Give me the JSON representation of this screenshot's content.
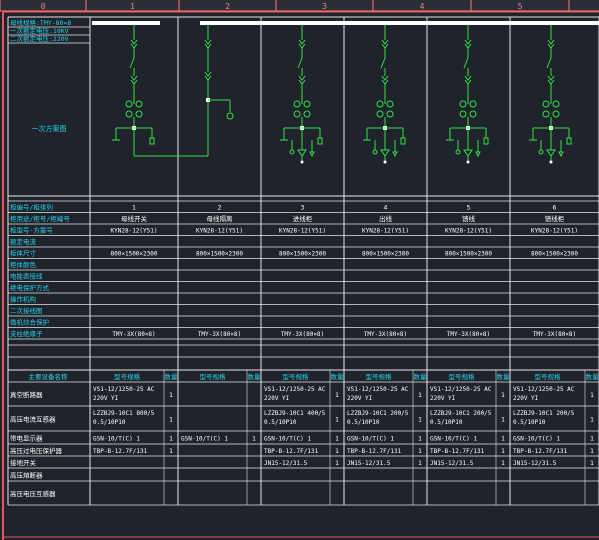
{
  "ruler": [
    "0",
    "1",
    "2",
    "3",
    "4",
    "5"
  ],
  "header_info": [
    "母线规格:TMY-80×8",
    "一次额定电压:10KV",
    "二次额定电压:220V"
  ],
  "diagram_label": "一次方案图",
  "row_labels": [
    "柜编号/柜排列",
    "柜用途/柜号/柜编号",
    "柜型号-方案号",
    "额定电流",
    "柜体尺寸",
    "柜体颜色",
    "电能表接线",
    "继电保护方式",
    "操作机构",
    "二次接线图",
    "微机综合保护",
    "支柱绝缘子"
  ],
  "panels": [
    {
      "no": "1",
      "name": "母线开关",
      "model": "KYN28-12(Y51)",
      "size": "800×1500×2300",
      "insulator": "TMY-3X(80×8)"
    },
    {
      "no": "2",
      "name": "母线隔离",
      "model": "KYN28-12(Y51)",
      "size": "800×1500×2300",
      "insulator": "TMY-3X(80×8)"
    },
    {
      "no": "3",
      "name": "进线柜",
      "model": "KYN28-12(Y51)",
      "size": "800×1500×2300",
      "insulator": "TMY-3X(80×8)"
    },
    {
      "no": "4",
      "name": "出线",
      "model": "KYN28-12(Y51)",
      "size": "800×1500×2300",
      "insulator": "TMY-3X(80×8)"
    },
    {
      "no": "5",
      "name": "馈线",
      "model": "KYN28-12(Y51)",
      "size": "800×1500×2300",
      "insulator": "TMY-3X(80×8)"
    },
    {
      "no": "6",
      "name": "馈线柜",
      "model": "KYN28-12(Y51)",
      "size": "800×1500×2300",
      "insulator": "TMY-3X(80×8)"
    }
  ],
  "equip_header": {
    "name": "主要设备名称",
    "spec": "型号规格",
    "qty": "数量"
  },
  "equip_names": [
    "真空断路器",
    "高压电流互感器",
    "带电显示器",
    "高压过电压保护器",
    "接地开关",
    "高压熔断器",
    "高压电压互感器"
  ],
  "equip_cells": [
    [
      {
        "spec": "VS1-12/1250-25 AC 220V YI",
        "qty": "1"
      },
      {
        "spec": "",
        "qty": ""
      },
      {
        "spec": "VS1-12/1250-25 AC 220V YI",
        "qty": "1"
      },
      {
        "spec": "VS1-12/1250-25 AC 220V YI",
        "qty": "1"
      },
      {
        "spec": "VS1-12/1250-25 AC 220V YI",
        "qty": "1"
      },
      {
        "spec": "VS1-12/1250-25 AC 220V YI",
        "qty": "1"
      }
    ],
    [
      {
        "spec": "LZZBJ9-10C1 800/5 0.5/10P10",
        "qty": "1"
      },
      {
        "spec": "",
        "qty": ""
      },
      {
        "spec": "LZZBJ9-10C1 400/5 0.5/10P10",
        "qty": "1"
      },
      {
        "spec": "LZZBJ9-10C1 200/5 0.5/10P10",
        "qty": "1"
      },
      {
        "spec": "LZZBJ9-10C1 200/5 0.5/10P10",
        "qty": "1"
      },
      {
        "spec": "LZZBJ9-10C1 200/5 0.5/10P10",
        "qty": "1"
      }
    ],
    [
      {
        "spec": "GSN-10/T(C) 1",
        "qty": "1"
      },
      {
        "spec": "GSN-10/T(C) 1",
        "qty": "1"
      },
      {
        "spec": "GSN-10/T(C) 1",
        "qty": "1"
      },
      {
        "spec": "GSN-10/T(C) 1",
        "qty": "1"
      },
      {
        "spec": "GSN-10/T(C) 1",
        "qty": "1"
      },
      {
        "spec": "GSN-10/T(C) 1",
        "qty": "1"
      }
    ],
    [
      {
        "spec": "TBP-B-12.7F/131",
        "qty": "1"
      },
      {
        "spec": "",
        "qty": ""
      },
      {
        "spec": "TBP-B-12.7F/131",
        "qty": "1"
      },
      {
        "spec": "TBP-B-12.7F/131",
        "qty": "1"
      },
      {
        "spec": "TBP-B-12.7F/131",
        "qty": "1"
      },
      {
        "spec": "TBP-B-12.7F/131",
        "qty": "1"
      }
    ],
    [
      {
        "spec": "",
        "qty": ""
      },
      {
        "spec": "",
        "qty": ""
      },
      {
        "spec": "JN15-12/31.5",
        "qty": "1"
      },
      {
        "spec": "JN15-12/31.5",
        "qty": "1"
      },
      {
        "spec": "JN15-12/31.5",
        "qty": "1"
      },
      {
        "spec": "JN15-12/31.5",
        "qty": "1"
      }
    ],
    [
      {
        "spec": "",
        "qty": ""
      },
      {
        "spec": "",
        "qty": ""
      },
      {
        "spec": "",
        "qty": ""
      },
      {
        "spec": "",
        "qty": ""
      },
      {
        "spec": "",
        "qty": ""
      },
      {
        "spec": "",
        "qty": ""
      }
    ],
    [
      {
        "spec": "",
        "qty": ""
      },
      {
        "spec": "",
        "qty": ""
      },
      {
        "spec": "",
        "qty": ""
      },
      {
        "spec": "",
        "qty": ""
      },
      {
        "spec": "",
        "qty": ""
      },
      {
        "spec": "",
        "qty": ""
      }
    ]
  ],
  "colors": {
    "background": "#1f232b",
    "grid": "#e6e6e6",
    "border_red": "#e8555c",
    "ruler_band": "#ff7a7e",
    "label_cyan": "#27d3ee",
    "symbol_green": "#33e24a",
    "busbar": "#ffffff",
    "value_white": "#ffffff"
  }
}
